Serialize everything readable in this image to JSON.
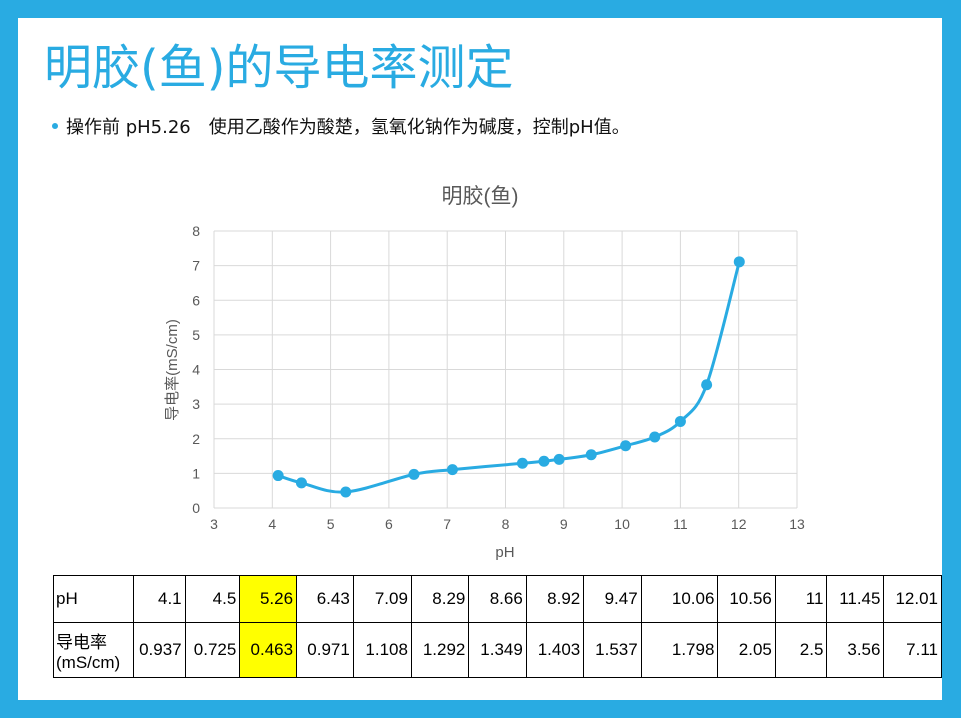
{
  "slide": {
    "title": "明胶(鱼)的导电率测定",
    "bullet": "操作前 pH5.26　使用乙酸作为酸楚，氢氧化钠作为碱度，控制pH值。"
  },
  "colors": {
    "frame": "#29abe2",
    "title": "#29abe2",
    "series": "#29abe2",
    "highlight": "#ffff00"
  },
  "chart_data": {
    "type": "scatter",
    "title": "明胶(鱼)",
    "xlabel": "pH",
    "ylabel": "导电率(mS/cm)",
    "xlim": [
      3,
      13
    ],
    "ylim": [
      0,
      8
    ],
    "xticks": [
      "3",
      "4",
      "5",
      "6",
      "7",
      "8",
      "9",
      "10",
      "11",
      "12",
      "13"
    ],
    "yticks": [
      "0",
      "1",
      "2",
      "3",
      "4",
      "5",
      "6",
      "7",
      "8"
    ],
    "grid": true,
    "smooth_line": true,
    "series": [
      {
        "x": [
          4.1,
          4.5,
          5.26,
          6.43,
          7.09,
          8.29,
          8.66,
          8.92,
          9.47,
          10.06,
          10.56,
          11,
          11.45,
          12.01
        ],
        "y": [
          0.937,
          0.725,
          0.463,
          0.971,
          1.108,
          1.292,
          1.349,
          1.403,
          1.537,
          1.798,
          2.05,
          2.5,
          3.56,
          7.11
        ]
      }
    ]
  },
  "table": {
    "rows": [
      {
        "header": "pH",
        "values": [
          "4.1",
          "4.5",
          "5.26",
          "6.43",
          "7.09",
          "8.29",
          "8.66",
          "8.92",
          "9.47",
          "10.06",
          "10.56",
          "11",
          "11.45",
          "12.01"
        ]
      },
      {
        "header_line1": "导电率",
        "header_line2": "(mS/cm)",
        "values": [
          "0.937",
          "0.725",
          "0.463",
          "0.971",
          "1.108",
          "1.292",
          "1.349",
          "1.403",
          "1.537",
          "1.798",
          "2.05",
          "2.5",
          "3.56",
          "7.11"
        ]
      }
    ],
    "highlight_column": 2
  }
}
